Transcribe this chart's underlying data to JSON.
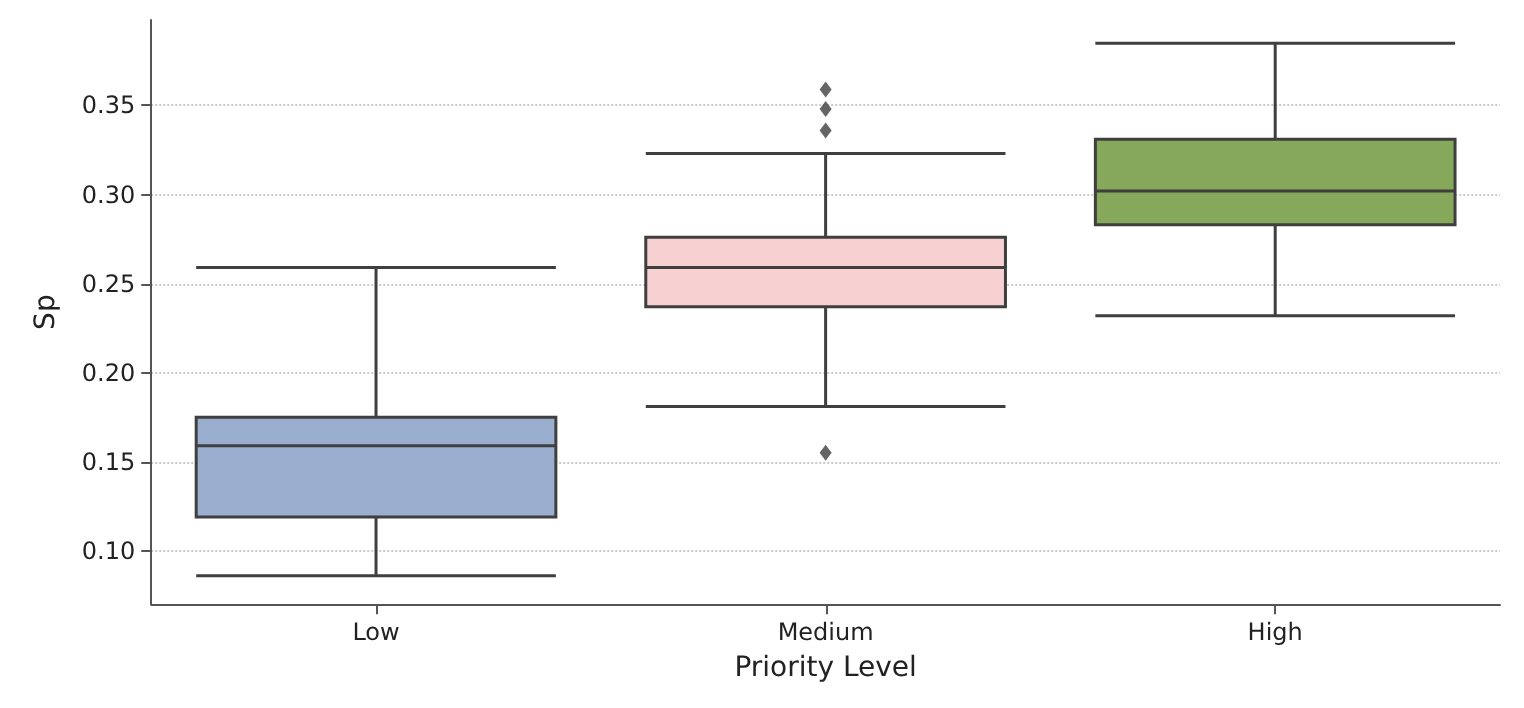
{
  "chart_data": {
    "type": "box",
    "xlabel": "Priority Level",
    "ylabel": "Sp",
    "categories": [
      "Low",
      "Medium",
      "High"
    ],
    "boxes": [
      {
        "low": 0.086,
        "q1": 0.119,
        "median": 0.159,
        "q3": 0.175,
        "high": 0.259
      },
      {
        "low": 0.181,
        "q1": 0.237,
        "median": 0.259,
        "q3": 0.276,
        "high": 0.323,
        "outliers": [
          0.359,
          0.348,
          0.336,
          0.155
        ]
      },
      {
        "low": 0.232,
        "q1": 0.283,
        "median": 0.302,
        "q3": 0.331,
        "high": 0.385
      }
    ],
    "colors": [
      "#9aaecf",
      "#f7d1d1",
      "#86a85a"
    ],
    "ylim": [
      0.07,
      0.398
    ],
    "yticks": [
      {
        "value": 0.1,
        "label": "0.10"
      },
      0.15,
      {
        "value": 0.2,
        "label": "0.20"
      },
      0.25,
      {
        "value": 0.3,
        "label": "0.30"
      },
      0.35
    ],
    "grid": "y",
    "marker": "diamond"
  }
}
